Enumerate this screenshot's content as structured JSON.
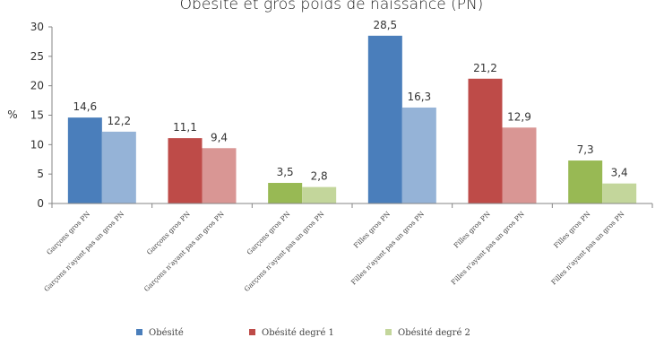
{
  "chart_data": {
    "type": "bar",
    "title": "Obésité et gros poids de naissance (PN)",
    "ylabel": "%",
    "xlabel": "",
    "ylim": [
      0,
      30
    ],
    "yticks": [
      "0",
      "5",
      "10",
      "15",
      "20",
      "25",
      "30"
    ],
    "grid": false,
    "legend_position": "bottom",
    "categories": [
      "Garçons gros PN",
      "Garçons n'ayant pas un gros PN",
      "Garçons gros PN",
      "Garçons n'ayant pas un gros PN",
      "Garçons gros PN",
      "Garçons n'ayant pas un gros PN",
      "Filles gros PN",
      "Filles n'ayant pas un gros PN",
      "Filles gros PN",
      "Filles n'ayant pas un gros PN",
      "Filles gros PN",
      "Filles n'ayant pas un gros PN"
    ],
    "series": [
      {
        "name": "Obésité",
        "values": [
          14.6,
          12.2,
          null,
          null,
          null,
          null,
          28.5,
          16.3,
          null,
          null,
          null,
          null
        ],
        "labels": [
          "14,6",
          "12,2",
          "",
          "",
          "",
          "",
          "28,5",
          "16,3",
          "",
          "",
          "",
          ""
        ]
      },
      {
        "name": "Obésité degré 1",
        "values": [
          null,
          null,
          11.1,
          9.4,
          null,
          null,
          null,
          null,
          21.2,
          12.9,
          null,
          null
        ],
        "labels": [
          "",
          "",
          "11,1",
          "9,4",
          "",
          "",
          "",
          "",
          "21,2",
          "12,9",
          "",
          ""
        ]
      },
      {
        "name": "Obésité degré 2",
        "values": [
          null,
          null,
          null,
          null,
          3.5,
          2.8,
          null,
          null,
          null,
          null,
          7.3,
          3.4
        ],
        "labels": [
          "",
          "",
          "",
          "",
          "3,5",
          "2,8",
          "",
          "",
          "",
          "",
          "7,3",
          "3,4"
        ]
      }
    ],
    "colors": {
      "blue_dark": "#4a7ebb",
      "blue_light": "#95b3d7",
      "red_dark": "#be4b48",
      "red_light": "#d99694",
      "green_dark": "#98b954",
      "green_light": "#c3d69b"
    }
  }
}
